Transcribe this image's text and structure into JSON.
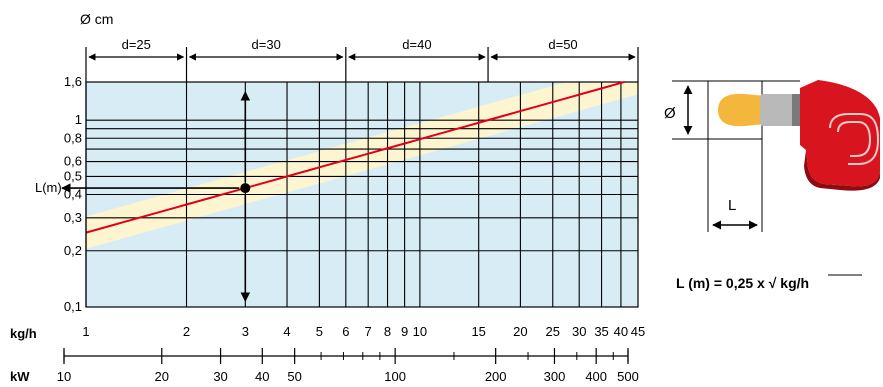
{
  "chart_data": {
    "type": "line",
    "title": "",
    "diameter_unit_label": "Ø cm",
    "xlabel": "kg/h",
    "xlabel_secondary": "kW",
    "ylabel": "L(m)",
    "x_scale": "log",
    "y_scale": "log",
    "xlim": [
      1,
      45
    ],
    "ylim": [
      0.1,
      1.6
    ],
    "grid": true,
    "x_ticks": [
      1,
      2,
      3,
      4,
      5,
      6,
      7,
      8,
      9,
      10,
      15,
      20,
      25,
      30,
      35,
      40,
      45
    ],
    "x_tick_labels": [
      "1",
      "2",
      "3",
      "4",
      "5",
      "6",
      "7",
      "8",
      "9",
      "10",
      "15",
      "20",
      "25",
      "30",
      "35",
      "40",
      "45"
    ],
    "y_ticks": [
      0.1,
      0.2,
      0.3,
      0.4,
      0.5,
      0.6,
      0.8,
      1,
      1.6
    ],
    "y_tick_labels": [
      "0,1",
      "0,2",
      "0,3",
      "0,4",
      "0,5",
      "0,6",
      "0,8",
      "1",
      "1,6"
    ],
    "kw_ticks": [
      10,
      20,
      30,
      40,
      50,
      100,
      200,
      300,
      400,
      500
    ],
    "kw_tick_labels": [
      "10",
      "20",
      "30",
      "40",
      "50",
      "100",
      "200",
      "300",
      "400",
      "500"
    ],
    "diameter_ranges": [
      {
        "label": "d=25",
        "from": 1,
        "to": 2
      },
      {
        "label": "d=30",
        "from": 2,
        "to": 6
      },
      {
        "label": "d=40",
        "from": 6,
        "to": 16
      },
      {
        "label": "d=50",
        "from": 16,
        "to": 45
      }
    ],
    "series": [
      {
        "formula": "L = 0.25 * sqrt(x)",
        "x": [
          1,
          4,
          9,
          16,
          25,
          36,
          41,
          45
        ],
        "y": [
          0.25,
          0.5,
          0.75,
          1.0,
          1.25,
          1.5,
          1.6,
          1.68
        ]
      }
    ],
    "tolerance_band": {
      "lower_factor": 0.82,
      "upper_factor": 1.22
    },
    "example_point": {
      "x": 3,
      "y": 0.433
    },
    "colors": {
      "plot_background": "#d8ecf6",
      "band": "#fdf4d0",
      "curve": "#e0001b",
      "grid": "#000000"
    }
  },
  "formula_text": "L (m) = 0,25 x √ kg/h",
  "diagram": {
    "diameter_symbol": "Ø",
    "length_symbol": "L",
    "colors": {
      "body": "#d8141f",
      "body_dark": "#8e0b12",
      "flame": "#f4b73e",
      "tube": "#b9b9b9"
    }
  }
}
